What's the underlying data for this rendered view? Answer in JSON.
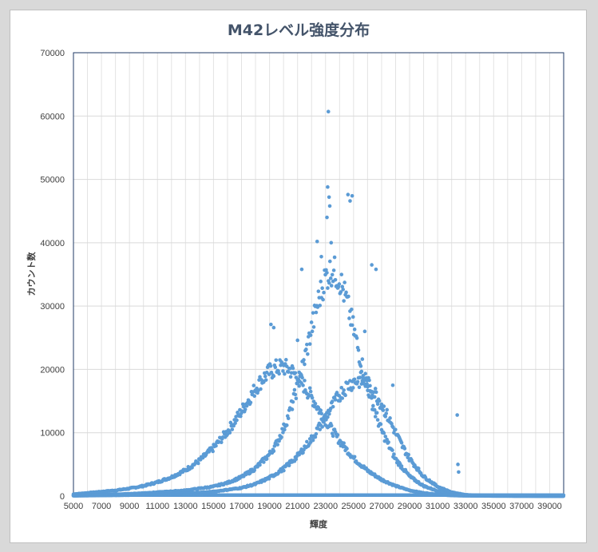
{
  "chart_data": {
    "type": "scatter",
    "title": "M42レベル強度分布",
    "xlabel": "輝度",
    "ylabel": "カウント数",
    "xlim": [
      5000,
      40000
    ],
    "ylim": [
      0,
      70000
    ],
    "x_ticks": [
      5000,
      7000,
      9000,
      11000,
      13000,
      15000,
      17000,
      19000,
      21000,
      23000,
      25000,
      27000,
      29000,
      31000,
      33000,
      35000,
      37000,
      39000
    ],
    "y_ticks": [
      0,
      10000,
      20000,
      30000,
      40000,
      50000,
      60000,
      70000
    ],
    "grid": true,
    "legend": "none",
    "marker_color": "#5b9bd5",
    "series": [
      {
        "x": [
          5000,
          6000,
          7000,
          8000,
          9000,
          10000,
          11000,
          12000,
          13000,
          14000,
          15000,
          16000,
          17000,
          17500,
          18000,
          18500,
          19000,
          19500,
          20000,
          20500,
          21000,
          21500,
          22000,
          22500,
          23000,
          23500,
          24000,
          25000,
          26000,
          27000,
          28000,
          29000,
          30000,
          31000,
          32000,
          33000,
          35000,
          37000,
          39000,
          40000
        ],
        "y": [
          300,
          500,
          700,
          900,
          1200,
          1600,
          2200,
          3000,
          4100,
          5600,
          7600,
          10200,
          13400,
          15200,
          17000,
          18500,
          19600,
          20200,
          20400,
          19900,
          18800,
          17300,
          15600,
          13800,
          12000,
          10300,
          8700,
          6000,
          4000,
          2600,
          1600,
          900,
          500,
          250,
          100,
          50,
          20,
          10,
          5,
          0
        ]
      },
      {
        "x": [
          5000,
          7000,
          9000,
          11000,
          13000,
          15000,
          16000,
          17000,
          18000,
          19000,
          19500,
          20000,
          20500,
          21000,
          21500,
          22000,
          22500,
          23000,
          23500,
          24000,
          24500,
          25000,
          25500,
          26000,
          26500,
          27000,
          28000,
          29000,
          30000,
          31000,
          32000,
          33000,
          35000,
          40000
        ],
        "y": [
          100,
          200,
          350,
          600,
          900,
          1500,
          2100,
          3000,
          4400,
          6600,
          8300,
          10600,
          13600,
          17300,
          21600,
          26400,
          31000,
          34600,
          35800,
          34300,
          30800,
          26300,
          21600,
          17300,
          13500,
          10300,
          5800,
          3100,
          1600,
          800,
          350,
          120,
          20,
          0
        ]
      },
      {
        "x": [
          5000,
          9000,
          13000,
          15000,
          17000,
          18000,
          19000,
          20000,
          21000,
          22000,
          22500,
          23000,
          23500,
          24000,
          24500,
          25000,
          25500,
          26000,
          26500,
          27000,
          27500,
          28000,
          28500,
          29000,
          30000,
          31000,
          32000,
          33000,
          35000,
          40000
        ],
        "y": [
          50,
          150,
          400,
          700,
          1300,
          1900,
          2900,
          4300,
          6300,
          9000,
          10700,
          12500,
          14300,
          16000,
          17300,
          18100,
          18300,
          17700,
          16400,
          14500,
          12300,
          10000,
          7800,
          5900,
          3100,
          1500,
          600,
          200,
          30,
          0
        ]
      },
      {
        "x": [
          23200,
          23150,
          23250,
          23300,
          23100,
          24600,
          24900,
          24750,
          23400,
          22400,
          21300,
          22700,
          19100,
          19300,
          21000,
          26300,
          26600,
          25800,
          27800,
          32400,
          32450,
          32500
        ],
        "y": [
          60700,
          48800,
          47200,
          45800,
          44000,
          47600,
          47400,
          46600,
          40000,
          40200,
          35800,
          37800,
          27100,
          26600,
          24600,
          36500,
          35800,
          26000,
          17500,
          12800,
          5000,
          3800
        ]
      }
    ]
  }
}
